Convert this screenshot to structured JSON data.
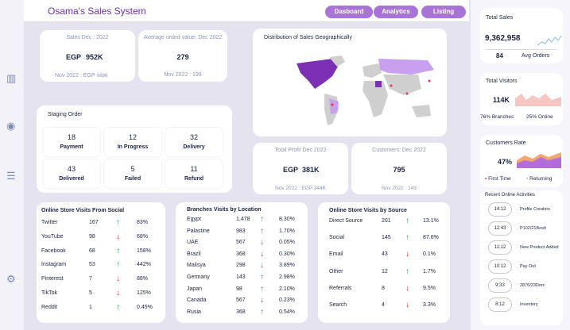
{
  "app_title": "Osama's Sales System",
  "nav": [
    "Dasboard",
    "Analytics",
    "Listing"
  ],
  "kpi": {
    "sales_label": "Sales Dec : 2022",
    "sales_cur": "EGP",
    "sales_val": "952K",
    "sales_prev": "Nov 2022 : EGP",
    "sales_prev_val": "868K",
    "avg_label": "Average orded value: Dec 2022",
    "avg_val": "279",
    "avg_prev": "Nov 2022 :  199",
    "profit_label": "Total Profit Dec 2022",
    "profit_cur": "EGP",
    "profit_val": "381K",
    "profit_prev": "Nov 2022 : EGP  344K",
    "cust_label": "Customers: Dec 2022",
    "cust_val": "795",
    "cust_prev": "Nov 2022 :  143"
  },
  "map_title": "Distribution of Sales Geographically",
  "staging": {
    "title": "Staging Order",
    "items": [
      {
        "n": "18",
        "l": "Payment"
      },
      {
        "n": "12",
        "l": "In Progress"
      },
      {
        "n": "32",
        "l": "Delivery"
      },
      {
        "n": "43",
        "l": "Delivered"
      },
      {
        "n": "5",
        "l": "Failed"
      },
      {
        "n": "11",
        "l": "Refund"
      }
    ]
  },
  "social": {
    "title": "Online Store Visits From Social",
    "rows": [
      {
        "name": "Twitter",
        "v": "167",
        "dir": "up",
        "pct": "83%"
      },
      {
        "name": "YouTube",
        "v": "98",
        "dir": "down",
        "pct": "68%"
      },
      {
        "name": "Facebook",
        "v": "68",
        "dir": "up",
        "pct": "158%"
      },
      {
        "name": "Instagram",
        "v": "53",
        "dir": "up",
        "pct": "442%"
      },
      {
        "name": "Pinterest",
        "v": "7",
        "dir": "down",
        "pct": "88%"
      },
      {
        "name": "TikTok",
        "v": "5",
        "dir": "down",
        "pct": "125%"
      },
      {
        "name": "Reddit",
        "v": "1",
        "dir": "up",
        "pct": "0.45%"
      }
    ]
  },
  "branches": {
    "title": "Branches Visits by Location",
    "rows": [
      {
        "name": "Egypt",
        "v": "1,478",
        "dir": "up",
        "pct": "8.30%"
      },
      {
        "name": "Palastine",
        "v": "983",
        "dir": "up",
        "pct": "1.70%"
      },
      {
        "name": "UAE",
        "v": "567",
        "dir": "down",
        "pct": "0.05%"
      },
      {
        "name": "Brazil",
        "v": "368",
        "dir": "down",
        "pct": "0.30%"
      },
      {
        "name": "Malisya",
        "v": "298",
        "dir": "down",
        "pct": "3.89%"
      },
      {
        "name": "Germany",
        "v": "143",
        "dir": "up",
        "pct": "2.98%"
      },
      {
        "name": "Japan",
        "v": "98",
        "dir": "up",
        "pct": "2.10%"
      },
      {
        "name": "Canada",
        "v": "567",
        "dir": "down",
        "pct": "0.23%"
      },
      {
        "name": "Rusia",
        "v": "368",
        "dir": "up",
        "pct": "0.54%"
      }
    ]
  },
  "source": {
    "title": "Online Store Visits by Source",
    "rows": [
      {
        "name": "Direct Source",
        "v": "201",
        "dir": "up",
        "pct": "13.1%"
      },
      {
        "name": "Social",
        "v": "145",
        "dir": "up",
        "pct": "87.6%"
      },
      {
        "name": "Email",
        "v": "43",
        "dir": "down",
        "pct": "0.1%"
      },
      {
        "name": "Other",
        "v": "12",
        "dir": "up",
        "pct": "1.7%"
      },
      {
        "name": "Referrals",
        "v": "8",
        "dir": "down",
        "pct": "9.5%"
      },
      {
        "name": "Search",
        "v": "4",
        "dir": "down",
        "pct": "3.3%"
      }
    ]
  },
  "right": {
    "sales_title": "Total Sales",
    "sales_val": "9,362,958",
    "orders_val": "84",
    "orders_lbl": "Avg Orders",
    "visitors_title": "Total Visitors",
    "visitors_val": "114K",
    "branches_pct": "76% Branches",
    "online_pct": "25% Online",
    "cust_title": "Customers Rate",
    "cust_pct": "47%",
    "first_lbl": "First Time",
    "ret_lbl": "Returning",
    "act_title": "Recent Online Activities",
    "activities": [
      {
        "t": "14:12",
        "d": "Profile Creation"
      },
      {
        "t": "12:43",
        "d": "P102/21Bosh"
      },
      {
        "t": "11:12",
        "d": "New Product Added"
      },
      {
        "t": "10:12",
        "d": "Pay Out"
      },
      {
        "t": "9:33",
        "d": "2876/23Dorc"
      },
      {
        "t": "8:12",
        "d": "Inventory"
      }
    ]
  },
  "colors": {
    "accent": "#a874d8",
    "up": "#1fa84a",
    "down": "#e12a2a",
    "title": "#6b2fa6"
  }
}
